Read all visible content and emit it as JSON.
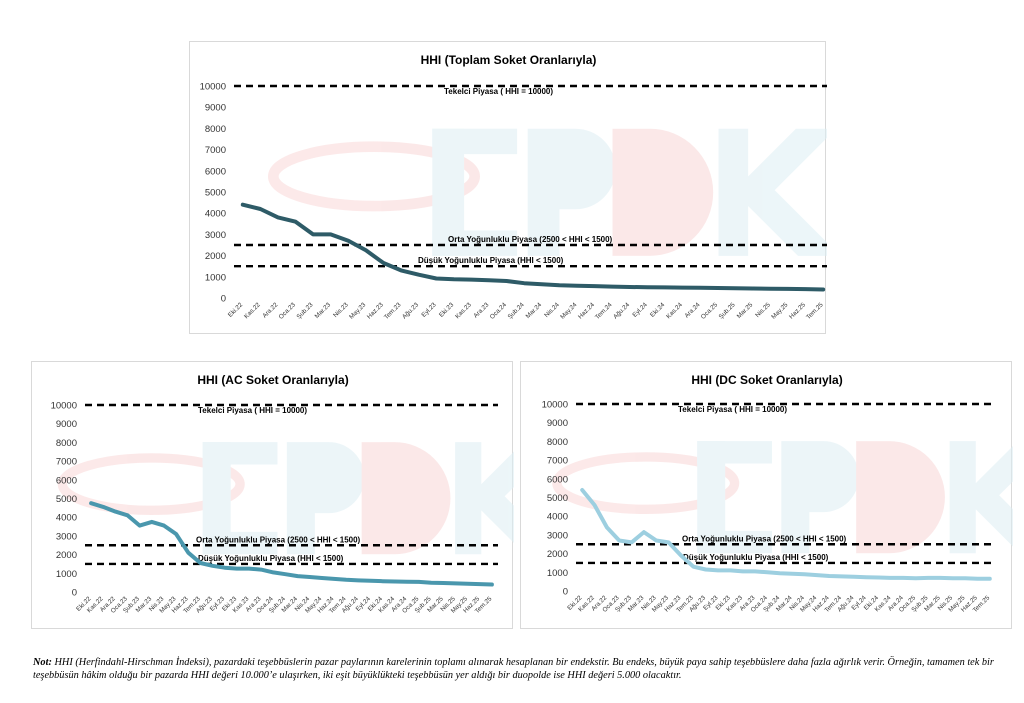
{
  "chart_data": [
    {
      "type": "line",
      "title": "HHI (Toplam Soket Oranlarıyla)",
      "xlabel": "",
      "ylabel": "",
      "ylim": [
        0,
        10000
      ],
      "yticks": [
        0,
        1000,
        2000,
        3000,
        4000,
        5000,
        6000,
        7000,
        8000,
        9000,
        10000
      ],
      "grid": false,
      "categories": [
        "Eki.22",
        "Kas.22",
        "Ara.22",
        "Oca.23",
        "Şub.23",
        "Mar.23",
        "Nis.23",
        "May.23",
        "Haz.23",
        "Tem.23",
        "Ağu.23",
        "Eyl.23",
        "Eki.23",
        "Kas.23",
        "Ara.23",
        "Oca.24",
        "Şub.24",
        "Mar.24",
        "Nis.24",
        "May.24",
        "Haz.24",
        "Tem.24",
        "Ağu.24",
        "Eyl.24",
        "Eki.24",
        "Kas.24",
        "Ara.24",
        "Oca.25",
        "Şub.25",
        "Mar.25",
        "Nis.25",
        "May.25",
        "Haz.25",
        "Tem.25"
      ],
      "series": [
        {
          "color": "#2e5b67",
          "values": [
            4400,
            4200,
            3800,
            3600,
            3000,
            3000,
            2700,
            2250,
            1650,
            1300,
            1100,
            920,
            880,
            870,
            840,
            800,
            700,
            650,
            600,
            580,
            560,
            540,
            520,
            510,
            500,
            490,
            480,
            470,
            460,
            450,
            440,
            430,
            420,
            400
          ]
        }
      ],
      "reference_lines": [
        {
          "value": 10000,
          "label": "Tekelci Piyasa ( HHI = 10000)"
        },
        {
          "value": 2500,
          "label": "Orta Yoğunluklu Piyasa (2500 < HHI < 1500)"
        },
        {
          "value": 1500,
          "label": "Düşük Yoğunluklu Piyasa (HHI < 1500)"
        }
      ]
    },
    {
      "type": "line",
      "title": "HHI (AC Soket Oranlarıyla)",
      "xlabel": "",
      "ylabel": "",
      "ylim": [
        0,
        10000
      ],
      "yticks": [
        0,
        1000,
        2000,
        3000,
        4000,
        5000,
        6000,
        7000,
        8000,
        9000,
        10000
      ],
      "grid": false,
      "categories": [
        "Eki.22",
        "Kas.22",
        "Ara.22",
        "Oca.23",
        "Şub.23",
        "Mar.23",
        "Nis.23",
        "May.23",
        "Haz.23",
        "Tem.23",
        "Ağu.23",
        "Eyl.23",
        "Eki.23",
        "Kas.23",
        "Ara.23",
        "Oca.24",
        "Şub.24",
        "Mar.24",
        "Nis.24",
        "May.24",
        "Haz.24",
        "Tem.24",
        "Ağu.24",
        "Eyl.24",
        "Eki.24",
        "Kas.24",
        "Ara.24",
        "Oca.25",
        "Şub.25",
        "Mar.25",
        "Nis.25",
        "May.25",
        "Haz.25",
        "Tem.25"
      ],
      "series": [
        {
          "color": "#4a97ad",
          "values": [
            4750,
            4550,
            4300,
            4100,
            3550,
            3750,
            3550,
            3100,
            2100,
            1550,
            1400,
            1300,
            1250,
            1250,
            1200,
            1050,
            950,
            850,
            800,
            750,
            700,
            650,
            620,
            600,
            580,
            560,
            550,
            540,
            500,
            480,
            460,
            440,
            420,
            400
          ]
        }
      ],
      "reference_lines": [
        {
          "value": 10000,
          "label": "Tekelci Piyasa ( HHI = 10000)"
        },
        {
          "value": 2500,
          "label": "Orta Yoğunluklu Piyasa (2500 < HHI < 1500)"
        },
        {
          "value": 1500,
          "label": "Düşük Yoğunluklu Piyasa (HHI < 1500)"
        }
      ]
    },
    {
      "type": "line",
      "title": "HHI (DC Soket Oranlarıyla)",
      "xlabel": "",
      "ylabel": "",
      "ylim": [
        0,
        10000
      ],
      "yticks": [
        0,
        1000,
        2000,
        3000,
        4000,
        5000,
        6000,
        7000,
        8000,
        9000,
        10000
      ],
      "grid": false,
      "categories": [
        "Eki.22",
        "Kas.22",
        "Ara.22",
        "Oca.23",
        "Şub.23",
        "Mar.23",
        "Nis.23",
        "May.23",
        "Haz.23",
        "Tem.23",
        "Ağu.23",
        "Eyl.23",
        "Eki.23",
        "Kas.23",
        "Ara.23",
        "Oca.24",
        "Şub.24",
        "Mar.24",
        "Nis.24",
        "May.24",
        "Haz.24",
        "Tem.24",
        "Ağu.24",
        "Eyl.24",
        "Eki.24",
        "Kas.24",
        "Ara.24",
        "Oca.25",
        "Şub.25",
        "Mar.25",
        "Nis.25",
        "May.25",
        "Haz.25",
        "Tem.25"
      ],
      "series": [
        {
          "color": "#9dcfe0",
          "values": [
            5400,
            4600,
            3400,
            2700,
            2600,
            3150,
            2700,
            2600,
            1900,
            1300,
            1150,
            1100,
            1100,
            1050,
            1050,
            1000,
            950,
            920,
            900,
            850,
            800,
            780,
            760,
            740,
            720,
            700,
            700,
            680,
            700,
            700,
            680,
            680,
            650,
            650
          ]
        }
      ],
      "reference_lines": [
        {
          "value": 10000,
          "label": "Tekelci Piyasa ( HHI = 10000)"
        },
        {
          "value": 2500,
          "label": "Orta Yoğunluklu Piyasa (2500 < HHI < 1500)"
        },
        {
          "value": 1500,
          "label": "Düşük Yoğunluklu Piyasa (HHI < 1500)"
        }
      ]
    }
  ],
  "watermark": {
    "text": "EPDK",
    "colors": [
      "#ddeef4",
      "#f9d7d7"
    ]
  },
  "note": {
    "label": "Not:",
    "text": "HHI (Herfindahl-Hirschman İndeksi), pazardaki teşebbüslerin pazar paylarının karelerinin toplamı alınarak hesaplanan bir endekstir. Bu endeks, büyük paya sahip teşebbüslere daha fazla ağırlık verir. Örneğin, tamamen tek bir teşebbüsün hâkim olduğu bir pazarda HHI değeri 10.000’e ulaşırken, iki eşit büyüklükteki teşebbüsün yer aldığı bir duopolde ise HHI değeri 5.000 olacaktır."
  }
}
